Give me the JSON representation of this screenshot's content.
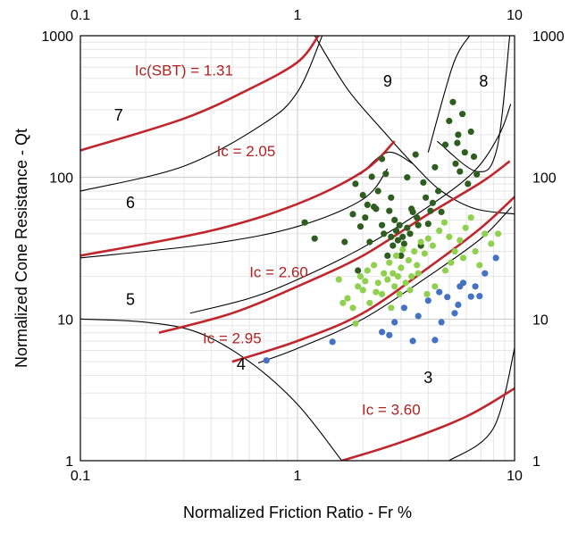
{
  "chart_data": {
    "type": "scatter",
    "x_scale": "log",
    "y_scale": "log",
    "xlim": [
      0.1,
      10
    ],
    "ylim": [
      1,
      1000
    ],
    "xlabel": "Normalized  Friction Ratio - Fr %",
    "ylabel": "Normalized  Cone Resistance - Qt",
    "x_ticks": [
      "0.1",
      "1",
      "10"
    ],
    "y_ticks": [
      "1",
      "10",
      "100",
      "1000"
    ],
    "grid": true,
    "colors": {
      "dark": "#2e5e1f",
      "light": "#8fd14f",
      "blue": "#4472c4",
      "ic": "#c0262c",
      "boundary": "#000000"
    },
    "zone_labels": [
      {
        "text": "1",
        "x": 0.0,
        "y": 0.0,
        "visible": false
      },
      {
        "text": "3",
        "x": 4.0,
        "y": 3.8
      },
      {
        "text": "4",
        "x": 0.55,
        "y": 4.7
      },
      {
        "text": "5",
        "x": 0.17,
        "y": 13.5
      },
      {
        "text": "6",
        "x": 0.17,
        "y": 65
      },
      {
        "text": "7",
        "x": 0.15,
        "y": 270
      },
      {
        "text": "8",
        "x": 7.2,
        "y": 470
      },
      {
        "text": "9",
        "x": 2.6,
        "y": 470
      }
    ],
    "ic_labels": [
      {
        "text": "Ic(SBT) = 1.31",
        "x": 0.3,
        "y": 560
      },
      {
        "text": "Ic = 2.05",
        "x": 0.58,
        "y": 150
      },
      {
        "text": "Ic = 2.60",
        "x": 0.82,
        "y": 21
      },
      {
        "text": "Ic = 2.95",
        "x": 0.5,
        "y": 7.2
      },
      {
        "text": "Ic = 3.60",
        "x": 2.7,
        "y": 2.25
      }
    ],
    "ic_curves": [
      {
        "name": "Ic(SBT) = 1.31",
        "points": [
          [
            0.1,
            155
          ],
          [
            0.3,
            260
          ],
          [
            0.6,
            420
          ],
          [
            1.0,
            650
          ],
          [
            1.25,
            1000
          ]
        ]
      },
      {
        "name": "Ic = 2.05",
        "points": [
          [
            0.1,
            28
          ],
          [
            0.4,
            42
          ],
          [
            1.0,
            65
          ],
          [
            2.0,
            110
          ],
          [
            2.8,
            180
          ]
        ]
      },
      {
        "name": "Ic = 2.60",
        "points": [
          [
            0.23,
            8
          ],
          [
            0.5,
            11
          ],
          [
            1.0,
            17
          ],
          [
            2.0,
            28
          ],
          [
            4.0,
            55
          ],
          [
            7.0,
            92
          ],
          [
            9.5,
            130
          ]
        ]
      },
      {
        "name": "Ic = 2.95",
        "points": [
          [
            0.5,
            5
          ],
          [
            1.0,
            7
          ],
          [
            2.0,
            11
          ],
          [
            4.0,
            23
          ],
          [
            7.0,
            44
          ],
          [
            10.2,
            75
          ]
        ]
      },
      {
        "name": "Ic = 3.60",
        "points": [
          [
            1.6,
            1
          ],
          [
            3.0,
            1.35
          ],
          [
            6.0,
            2.05
          ],
          [
            10.2,
            3.3
          ]
        ]
      }
    ],
    "boundary_curves": [
      {
        "name": "7-6",
        "points": [
          [
            0.1,
            80
          ],
          [
            0.3,
            120
          ],
          [
            0.7,
            240
          ],
          [
            1.0,
            400
          ],
          [
            1.3,
            1000
          ]
        ]
      },
      {
        "name": "6-5",
        "points": [
          [
            0.1,
            27
          ],
          [
            0.4,
            34
          ],
          [
            1.0,
            45
          ],
          [
            2.0,
            70
          ],
          [
            2.6,
            115
          ]
        ]
      },
      {
        "name": "5-4",
        "points": [
          [
            0.32,
            11
          ],
          [
            0.6,
            14
          ],
          [
            1.0,
            19
          ],
          [
            2.0,
            32
          ],
          [
            4.0,
            62
          ],
          [
            6.5,
            110
          ],
          [
            8.5,
            200
          ],
          [
            9.6,
            330
          ]
        ]
      },
      {
        "name": "4-3",
        "points": [
          [
            0.66,
            4.9
          ],
          [
            1.0,
            6.2
          ],
          [
            2.0,
            10
          ],
          [
            4.0,
            20
          ],
          [
            7.0,
            37
          ],
          [
            9.7,
            62
          ]
        ]
      },
      {
        "name": "1-4",
        "points": [
          [
            0.1,
            10
          ],
          [
            0.2,
            9.5
          ],
          [
            0.35,
            8
          ],
          [
            0.6,
            5
          ],
          [
            1.0,
            2.5
          ],
          [
            1.6,
            1
          ]
        ]
      },
      {
        "name": "3-right",
        "points": [
          [
            5.0,
            1.0
          ],
          [
            8.0,
            1.7
          ],
          [
            10.2,
            7.2
          ]
        ]
      },
      {
        "name": "9-left",
        "points": [
          [
            1.2,
            1000
          ],
          [
            1.7,
            420
          ],
          [
            2.5,
            210
          ],
          [
            3.4,
            125
          ],
          [
            4.6,
            80
          ],
          [
            6.6,
            60
          ],
          [
            10.2,
            55
          ]
        ]
      },
      {
        "name": "8-9",
        "points": [
          [
            4.0,
            150
          ],
          [
            5.2,
            620
          ],
          [
            6.2,
            1000
          ]
        ]
      },
      {
        "name": "8-lower",
        "points": [
          [
            4.4,
            180
          ],
          [
            6.7,
            110
          ],
          [
            8.3,
            160
          ],
          [
            9.5,
            1000
          ]
        ]
      },
      {
        "name": "6-9",
        "points": [
          [
            1.95,
            105
          ],
          [
            2.6,
            150
          ],
          [
            3.4,
            125
          ]
        ]
      }
    ],
    "series": [
      {
        "color_key": "dark",
        "points": [
          [
            1.08,
            48
          ],
          [
            1.2,
            37
          ],
          [
            1.65,
            35
          ],
          [
            1.8,
            55
          ],
          [
            1.95,
            45
          ],
          [
            1.9,
            22
          ],
          [
            1.85,
            90
          ],
          [
            2.0,
            75
          ],
          [
            2.05,
            52
          ],
          [
            2.1,
            64
          ],
          [
            2.15,
            35
          ],
          [
            2.2,
            101
          ],
          [
            2.3,
            60
          ],
          [
            2.35,
            80
          ],
          [
            2.45,
            46
          ],
          [
            2.5,
            40
          ],
          [
            2.55,
            106
          ],
          [
            2.6,
            28
          ],
          [
            2.65,
            58
          ],
          [
            2.7,
            38
          ],
          [
            2.75,
            33
          ],
          [
            2.8,
            50
          ],
          [
            2.85,
            42
          ],
          [
            2.9,
            36
          ],
          [
            2.95,
            46
          ],
          [
            3.0,
            28
          ],
          [
            3.05,
            38
          ],
          [
            3.1,
            34
          ],
          [
            3.2,
            44
          ],
          [
            3.3,
            40
          ],
          [
            3.35,
            60
          ],
          [
            3.4,
            57
          ],
          [
            3.5,
            145
          ],
          [
            3.55,
            52
          ],
          [
            3.6,
            46
          ],
          [
            3.7,
            33
          ],
          [
            3.8,
            92
          ],
          [
            3.9,
            72
          ],
          [
            4.0,
            47
          ],
          [
            4.1,
            58
          ],
          [
            4.2,
            66
          ],
          [
            4.3,
            118
          ],
          [
            4.45,
            80
          ],
          [
            4.6,
            57
          ],
          [
            4.8,
            170
          ],
          [
            5.0,
            250
          ],
          [
            5.2,
            340
          ],
          [
            5.35,
            125
          ],
          [
            5.45,
            175
          ],
          [
            5.6,
            110
          ],
          [
            5.75,
            280
          ],
          [
            5.9,
            150
          ],
          [
            6.1,
            90
          ],
          [
            6.3,
            210
          ],
          [
            6.5,
            140
          ],
          [
            6.7,
            105
          ],
          [
            2.45,
            135
          ],
          [
            3.2,
            100
          ],
          [
            2.25,
            62
          ],
          [
            2.7,
            72
          ],
          [
            5.5,
            200
          ]
        ]
      },
      {
        "color_key": "light",
        "points": [
          [
            1.55,
            19
          ],
          [
            1.7,
            14
          ],
          [
            1.8,
            12
          ],
          [
            1.85,
            9.3
          ],
          [
            1.9,
            17
          ],
          [
            1.95,
            20
          ],
          [
            2.0,
            16
          ],
          [
            2.1,
            22
          ],
          [
            2.15,
            13
          ],
          [
            2.25,
            24
          ],
          [
            2.35,
            18
          ],
          [
            2.45,
            15
          ],
          [
            2.5,
            21
          ],
          [
            2.6,
            19
          ],
          [
            2.65,
            25
          ],
          [
            2.7,
            12
          ],
          [
            2.8,
            17
          ],
          [
            2.85,
            28
          ],
          [
            2.9,
            20
          ],
          [
            2.95,
            15
          ],
          [
            3.0,
            23
          ],
          [
            3.05,
            31
          ],
          [
            3.15,
            18
          ],
          [
            3.25,
            26
          ],
          [
            3.35,
            20
          ],
          [
            3.45,
            30
          ],
          [
            3.55,
            24
          ],
          [
            3.7,
            35
          ],
          [
            3.85,
            29
          ],
          [
            4.0,
            37
          ],
          [
            4.2,
            33
          ],
          [
            4.5,
            42
          ],
          [
            4.75,
            48
          ],
          [
            5.0,
            38
          ],
          [
            5.3,
            30
          ],
          [
            5.6,
            36
          ],
          [
            5.95,
            44
          ],
          [
            6.3,
            52
          ],
          [
            6.6,
            30
          ],
          [
            6.9,
            24
          ],
          [
            7.3,
            40
          ],
          [
            7.8,
            34
          ],
          [
            8.4,
            40
          ],
          [
            1.62,
            13
          ],
          [
            2.05,
            18.5
          ],
          [
            2.3,
            15.5
          ],
          [
            2.75,
            21
          ],
          [
            3.3,
            16
          ],
          [
            3.6,
            21
          ],
          [
            3.95,
            15
          ],
          [
            4.3,
            17
          ],
          [
            4.8,
            22
          ],
          [
            5.1,
            25
          ],
          [
            5.8,
            27
          ]
        ]
      },
      {
        "color_key": "blue",
        "points": [
          [
            0.72,
            5.1
          ],
          [
            1.45,
            6.9
          ],
          [
            2.45,
            8.1
          ],
          [
            2.65,
            7.7
          ],
          [
            2.8,
            9.5
          ],
          [
            3.1,
            12
          ],
          [
            3.4,
            7.0
          ],
          [
            3.6,
            10.5
          ],
          [
            4.0,
            13.5
          ],
          [
            4.3,
            7.1
          ],
          [
            4.5,
            15.5
          ],
          [
            4.9,
            14.3
          ],
          [
            5.3,
            11
          ],
          [
            5.6,
            17
          ],
          [
            5.8,
            18
          ],
          [
            6.3,
            14.4
          ],
          [
            6.6,
            17
          ],
          [
            7.3,
            21
          ],
          [
            8.2,
            27
          ],
          [
            4.6,
            9.5
          ],
          [
            5.5,
            12.6
          ],
          [
            6.9,
            14.5
          ]
        ]
      }
    ]
  }
}
